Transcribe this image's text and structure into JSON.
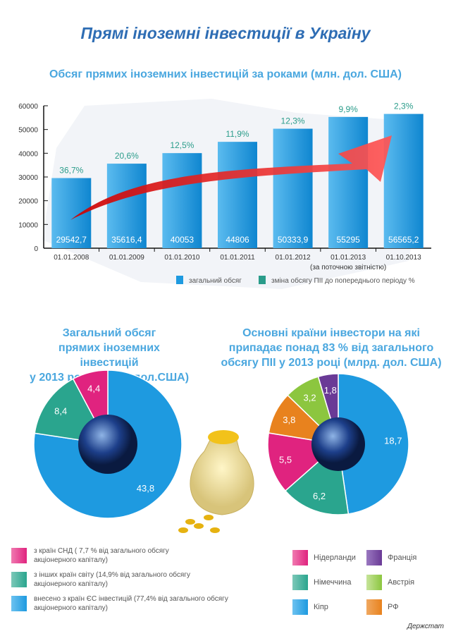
{
  "title": "Прямі іноземні інвестиції в Україну",
  "colors": {
    "bar": "#1e9ae0",
    "pct": "#2a9c8a",
    "cis": "#e0237f",
    "other": "#2aa58e",
    "eu": "#1e9ae0",
    "nl": "#e0237f",
    "de": "#2aa58e",
    "cy": "#1e9ae0",
    "fr": "#6a3a96",
    "at": "#8cc63f",
    "ru": "#e8821e"
  },
  "chart_data": [
    {
      "type": "bar",
      "title": "Обсяг прямих іноземних інвестицій за роками (млн. дол. США)",
      "categories": [
        "01.01.2008",
        "01.01.2009",
        "01.01.2010",
        "01.01.2011",
        "01.01.2012",
        "01.01.2013",
        "01.10.2013"
      ],
      "category_note": "(за поточною звітністю)",
      "values": [
        29542.7,
        35616.4,
        40053,
        44806,
        50333.9,
        55295,
        56565.2
      ],
      "value_labels": [
        "29542,7",
        "35616,4",
        "40053",
        "44806",
        "50333,9",
        "55295",
        "56565,2"
      ],
      "pct_labels": [
        "36,7%",
        "20,6%",
        "12,5%",
        "11,9%",
        "12,3%",
        "9,9%",
        "2,3%"
      ],
      "yticks": [
        "0",
        "10000",
        "20000",
        "30000",
        "40000",
        "50000",
        "60000"
      ],
      "ylim": [
        0,
        60000
      ],
      "legend": [
        "загальний обсяг",
        "зміна обсягу ПІІ до попереднього періоду %"
      ],
      "legend_placement": "bottom"
    },
    {
      "type": "pie",
      "title": [
        "Загальний обсяг",
        "прямих іноземних інвестицій",
        "у 2013 році (млрд. дол.США)"
      ],
      "slices": [
        {
          "value": 43.8,
          "label": "43,8",
          "color": "#1e9ae0"
        },
        {
          "value": 8.4,
          "label": "8,4",
          "color": "#2aa58e"
        },
        {
          "value": 4.4,
          "label": "4,4",
          "color": "#e0237f"
        }
      ],
      "legend": [
        "з країн СНД ( 7,7 % від загального обсягу акціонерного капіталу)",
        "з інших країн світу (14,9% від загального обсягу акціонерного капіталу)",
        "внесено з країн ЄС інвестицій (77,4% від загального обсягу акціонерного капіталу)"
      ]
    },
    {
      "type": "pie",
      "title": [
        "Основні країни інвестори на які",
        "припадає понад 83 % від загального",
        "обсягу ПІІ у 2013 році (млрд. дол. США)"
      ],
      "slices": [
        {
          "value": 18.7,
          "label": "18,7",
          "color": "#1e9ae0"
        },
        {
          "value": 6.2,
          "label": "6,2",
          "color": "#2aa58e"
        },
        {
          "value": 5.5,
          "label": "5,5",
          "color": "#e0237f"
        },
        {
          "value": 3.8,
          "label": "3,8",
          "color": "#e8821e"
        },
        {
          "value": 3.2,
          "label": "3,2",
          "color": "#8cc63f"
        },
        {
          "value": 1.8,
          "label": "1,8",
          "color": "#6a3a96"
        }
      ],
      "legend": [
        "Нідерланди",
        "Франція",
        "Німеччина",
        "Австрія",
        "Кіпр",
        "РФ"
      ]
    }
  ],
  "source": "Держстат"
}
